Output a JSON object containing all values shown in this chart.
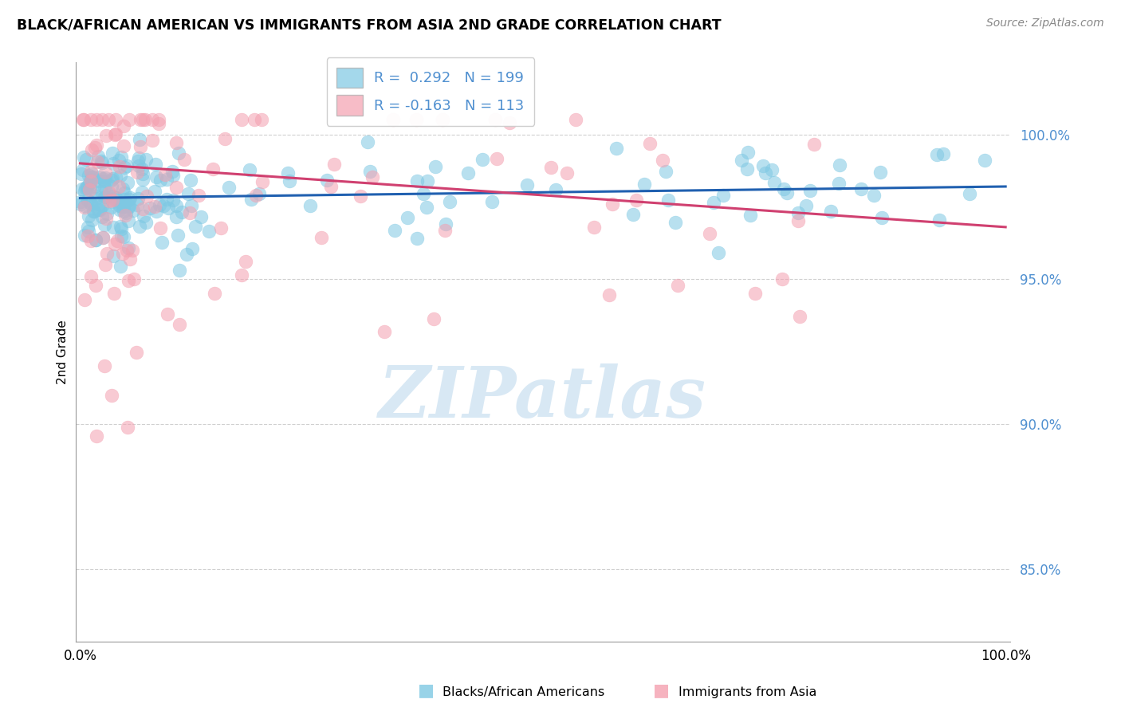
{
  "title": "BLACK/AFRICAN AMERICAN VS IMMIGRANTS FROM ASIA 2ND GRADE CORRELATION CHART",
  "source": "Source: ZipAtlas.com",
  "ylabel": "2nd Grade",
  "legend_blue_label": "Blacks/African Americans",
  "legend_pink_label": "Immigrants from Asia",
  "r_blue": 0.292,
  "n_blue": 199,
  "r_pink": -0.163,
  "n_pink": 113,
  "blue_color": "#7ec8e3",
  "pink_color": "#f4a0b0",
  "blue_line_color": "#2060b0",
  "pink_line_color": "#d04070",
  "y_tick_labels": [
    "85.0%",
    "90.0%",
    "95.0%",
    "100.0%"
  ],
  "y_tick_values": [
    0.85,
    0.9,
    0.95,
    1.0
  ],
  "ylim": [
    0.825,
    1.025
  ],
  "xlim": [
    -0.005,
    1.005
  ],
  "blue_slope": 0.004,
  "blue_intercept": 0.978,
  "pink_slope": -0.022,
  "pink_intercept": 0.99,
  "watermark_text": "ZIPatlas",
  "watermark_color": "#c8dff0",
  "background_color": "#ffffff",
  "grid_color": "#d0d0d0",
  "tick_color": "#5090d0"
}
